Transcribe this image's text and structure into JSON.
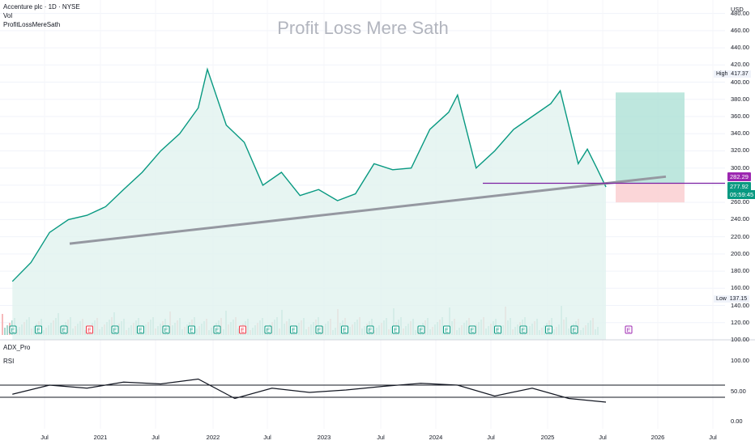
{
  "header": {
    "title": "Accenture plc · 1D · NYSE",
    "vol_label": "Vol",
    "indicator_label": "ProfitLossMereSath"
  },
  "watermark": "Profit Loss Mere Sath",
  "price_axis": {
    "currency": "USD",
    "ticks": [
      "480.00",
      "460.00",
      "440.00",
      "420.00",
      "400.00",
      "380.00",
      "360.00",
      "340.00",
      "320.00",
      "300.00",
      "280.00",
      "260.00",
      "240.00",
      "220.00",
      "200.00",
      "180.00",
      "160.00",
      "140.00",
      "120.00",
      "100.00"
    ],
    "high_label": "High",
    "high_value": "417.37",
    "low_label": "Low",
    "low_value": "137.15",
    "target_tag": "282.29",
    "price_tag": "277.92",
    "countdown_tag": "05:59:45"
  },
  "time_axis": {
    "ticks": [
      "Jul",
      "2021",
      "Jul",
      "2022",
      "Jul",
      "2023",
      "Jul",
      "2024",
      "Jul",
      "2025",
      "Jul",
      "2026",
      "Jul"
    ]
  },
  "rsi_pane": {
    "title": "ADX_Pro",
    "label": "RSI",
    "ticks": [
      "100.00",
      "50.00",
      "0.00"
    ],
    "upper": 60,
    "lower": 40
  },
  "earnings_marker": "E",
  "colors": {
    "price_line": "#089981",
    "area_fill": "#e1f3ef",
    "trendline": "#9598a1",
    "support": "#7b1fa2",
    "target_box": "#a8dfd3",
    "stop_box": "#fbd2d4",
    "vol_up": "#a7d8cd",
    "vol_down": "#f6b9bb"
  },
  "chart_data": [
    {
      "type": "line",
      "title": "Accenture plc · 1D · NYSE",
      "xlabel": "",
      "ylabel": "USD",
      "ylim": [
        100,
        490
      ],
      "x": [
        "2020-03",
        "2020-05",
        "2020-07",
        "2020-09",
        "2020-11",
        "2021-01",
        "2021-03",
        "2021-05",
        "2021-07",
        "2021-09",
        "2021-11",
        "2021-12",
        "2022-02",
        "2022-04",
        "2022-06",
        "2022-08",
        "2022-10",
        "2022-12",
        "2023-02",
        "2023-04",
        "2023-06",
        "2023-08",
        "2023-10",
        "2023-12",
        "2024-02",
        "2024-03",
        "2024-05",
        "2024-07",
        "2024-09",
        "2024-11",
        "2025-01",
        "2025-02",
        "2025-04",
        "2025-05",
        "2025-06",
        "2025-07"
      ],
      "series": [
        {
          "values": [
            168,
            190,
            225,
            240,
            245,
            255,
            275,
            295,
            320,
            340,
            370,
            415,
            350,
            330,
            280,
            295,
            268,
            275,
            262,
            270,
            305,
            298,
            300,
            345,
            365,
            385,
            300,
            320,
            345,
            360,
            375,
            390,
            305,
            322,
            300,
            278
          ]
        }
      ],
      "annotations": {
        "high": 417.37,
        "low": 137.15,
        "last": 277.92,
        "support": 282.29,
        "trendline_start": 212,
        "trendline_end": 290,
        "target_zone": [
          282.29,
          388
        ],
        "stop_zone": [
          260,
          282.29
        ]
      }
    },
    {
      "type": "line",
      "title": "RSI",
      "ylim": [
        0,
        100
      ],
      "x": [
        "2020-03",
        "2020-07",
        "2020-11",
        "2021-03",
        "2021-07",
        "2021-11",
        "2022-03",
        "2022-07",
        "2022-11",
        "2023-03",
        "2023-07",
        "2023-11",
        "2024-03",
        "2024-07",
        "2024-11",
        "2025-03",
        "2025-07"
      ],
      "series": [
        {
          "values": [
            45,
            60,
            55,
            65,
            62,
            70,
            38,
            55,
            48,
            52,
            58,
            63,
            60,
            42,
            55,
            38,
            32
          ]
        }
      ]
    }
  ]
}
